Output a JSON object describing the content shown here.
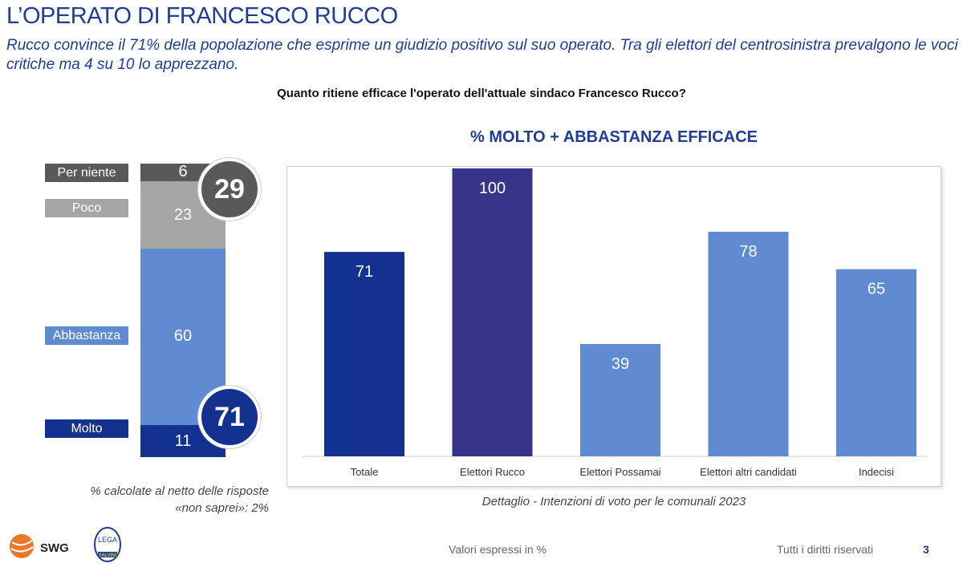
{
  "header": {
    "title": "L’OPERATO DI FRANCESCO RUCCO",
    "subtitle": "Rucco convince il 71% della popolazione che esprime un giudizio positivo sul suo operato. Tra gli elettori del centrosinistra prevalgono le voci critiche ma 4 su 10 lo apprezzano.",
    "question": "Quanto ritiene efficace l'operato dell'attuale sindaco Francesco Rucco?"
  },
  "chart_data": [
    {
      "type": "bar",
      "subtype": "stacked",
      "categories": [
        "Per niente",
        "Poco",
        "Abbastanza",
        "Molto"
      ],
      "values": [
        6,
        23,
        60,
        11
      ],
      "totals": {
        "negative": "29",
        "positive": "71"
      },
      "colors": [
        "#595959",
        "#a5a5a5",
        "#5f8bd0",
        "#13328f"
      ],
      "note": "% calcolate al netto delle risposte «non saprei»: 2%"
    },
    {
      "type": "bar",
      "title": "% MOLTO + ABBASTANZA EFFICACE",
      "categories": [
        "Totale",
        "Elettori Rucco",
        "Elettori Possamai",
        "Elettori altri candidati",
        "Indecisi"
      ],
      "values": [
        71,
        100,
        39,
        78,
        65
      ],
      "colors": [
        "#13328f",
        "#37358a",
        "#5f8bd0",
        "#5f8bd0",
        "#5f8bd0"
      ],
      "ylim": [
        0,
        100
      ],
      "xlabel": "Dettaglio - Intenzioni di voto per le comunali 2023"
    }
  ],
  "footer": {
    "units": "Valori espressi in %",
    "rights": "Tutti i diritti riservati",
    "page": "3",
    "logos": [
      "SWG",
      "LEGA SALVINI"
    ]
  }
}
